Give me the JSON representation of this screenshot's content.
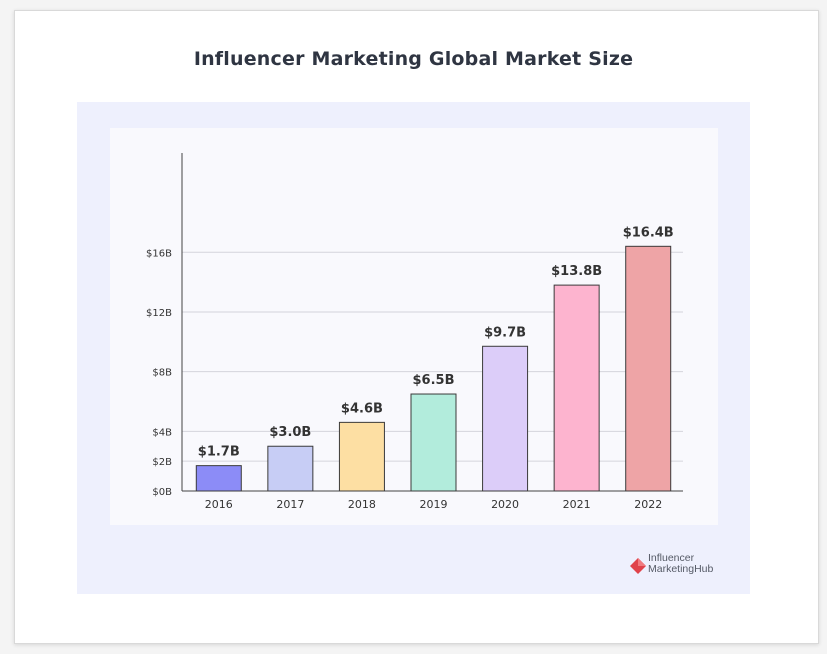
{
  "page": {
    "title": "Influencer Marketing Global Market Size"
  },
  "brand": {
    "line1": "Influencer",
    "line2": "MarketingHub",
    "logo_icon": "influencer-marketing-hub-logo-icon",
    "color": "#e0424a"
  },
  "chart_data": {
    "type": "bar",
    "title": "Influencer Marketing Global Market Size",
    "xlabel": "",
    "ylabel": "",
    "categories": [
      "2016",
      "2017",
      "2018",
      "2019",
      "2020",
      "2021",
      "2022"
    ],
    "values": [
      1.7,
      3.0,
      4.6,
      6.5,
      9.7,
      13.8,
      16.4
    ],
    "value_labels": [
      "$1.7B",
      "$3.0B",
      "$4.6B",
      "$6.5B",
      "$9.7B",
      "$13.8B",
      "$16.4B"
    ],
    "bar_colors": [
      "#8c8cf7",
      "#c7cdf5",
      "#fddfa3",
      "#b2ecdc",
      "#dccdf9",
      "#fdb4cf",
      "#eea4a6"
    ],
    "bar_edge_color": "#3a3a3a",
    "yticks": [
      0,
      2,
      4,
      8,
      12,
      16
    ],
    "ytick_labels": [
      "$0B",
      "$2B",
      "$4B",
      "$8B",
      "$12B",
      "$16B"
    ],
    "ylim": [
      0,
      18
    ],
    "grid": true,
    "legend": "none"
  }
}
